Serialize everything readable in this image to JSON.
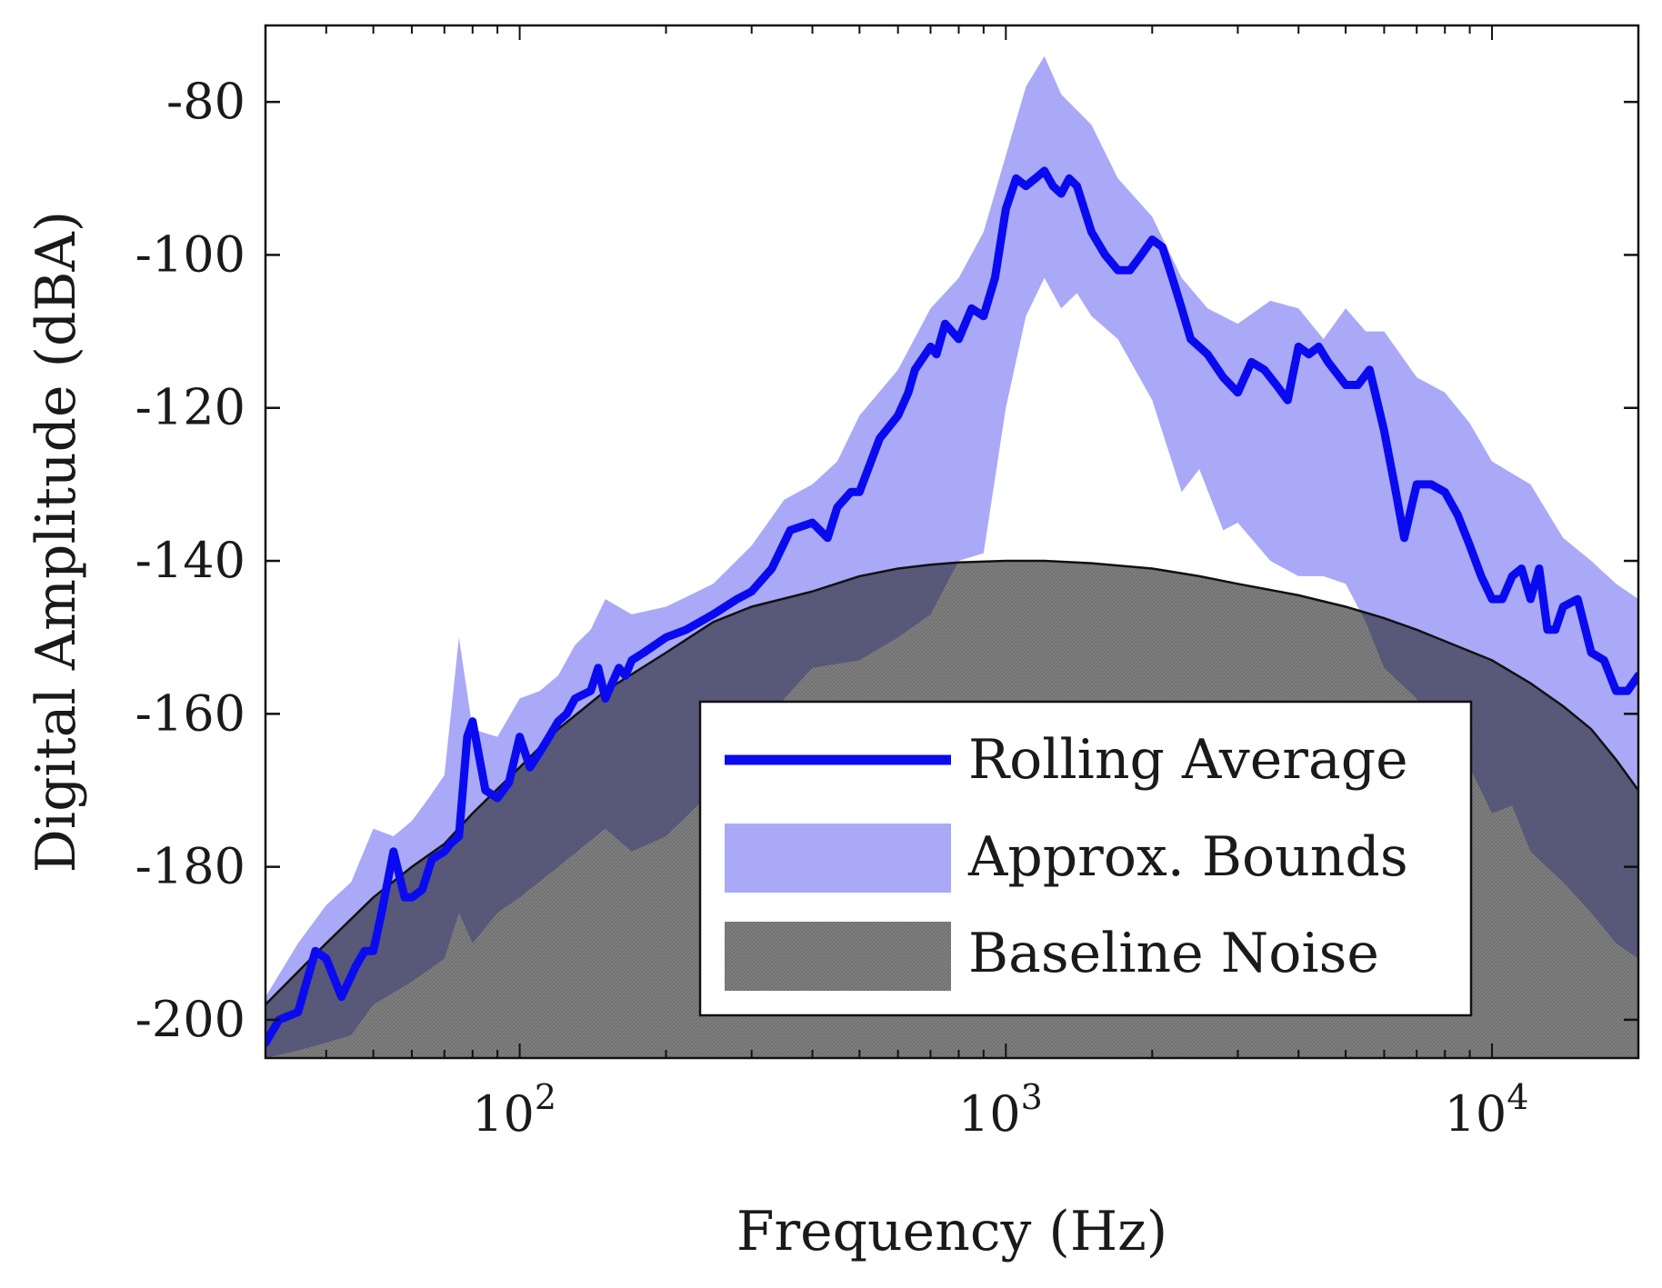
{
  "chart_data": {
    "type": "line",
    "title": "",
    "xlabel": "Frequency (Hz)",
    "ylabel": "Digital Amplitude (dBA)",
    "xscale": "log",
    "xlim": [
      30,
      20000
    ],
    "ylim": [
      -205,
      -70
    ],
    "grid": false,
    "legend_position": "bottom-right",
    "x_ticks": [
      {
        "base": "10",
        "exp": "2",
        "value": 100
      },
      {
        "base": "10",
        "exp": "3",
        "value": 1000
      },
      {
        "base": "10",
        "exp": "4",
        "value": 10000
      }
    ],
    "y_ticks": [
      {
        "label": "-80",
        "value": -80
      },
      {
        "label": "-100",
        "value": -100
      },
      {
        "label": "-120",
        "value": -120
      },
      {
        "label": "-140",
        "value": -140
      },
      {
        "label": "-160",
        "value": -160
      },
      {
        "label": "-180",
        "value": -180
      },
      {
        "label": "-200",
        "value": -200
      }
    ],
    "legend": [
      {
        "key": "rolling",
        "label": "Rolling Average"
      },
      {
        "key": "bounds",
        "label": "Approx. Bounds"
      },
      {
        "key": "noise",
        "label": "Baseline Noise"
      }
    ],
    "colors": {
      "rolling": "#0a0af0",
      "bounds": "#a9a9f7",
      "noise": "#7f7f7f",
      "noise_edge": "#111111",
      "overlap": "#4e4e7a"
    },
    "series": [
      {
        "name": "Rolling Average",
        "key": "rolling",
        "x": [
          30,
          32,
          35,
          38,
          40,
          43,
          46,
          48,
          50,
          52,
          55,
          58,
          60,
          63,
          66,
          70,
          72,
          75,
          78,
          80,
          85,
          90,
          95,
          100,
          105,
          110,
          115,
          120,
          125,
          130,
          140,
          145,
          150,
          160,
          165,
          170,
          180,
          200,
          220,
          250,
          280,
          300,
          330,
          360,
          400,
          430,
          450,
          480,
          500,
          550,
          600,
          630,
          650,
          700,
          720,
          750,
          800,
          850,
          900,
          950,
          1000,
          1050,
          1100,
          1150,
          1200,
          1250,
          1300,
          1350,
          1400,
          1500,
          1600,
          1700,
          1800,
          1900,
          2000,
          2100,
          2200,
          2300,
          2400,
          2600,
          2800,
          3000,
          3200,
          3400,
          3600,
          3800,
          4000,
          4200,
          4400,
          4600,
          5000,
          5300,
          5600,
          6000,
          6300,
          6600,
          7000,
          7500,
          8000,
          8500,
          9000,
          9500,
          10000,
          10500,
          11000,
          11500,
          12000,
          12500,
          13000,
          13500,
          14000,
          15000,
          16000,
          17000,
          18000,
          19000,
          20000
        ],
        "values": [
          -203,
          -200,
          -199,
          -191,
          -192,
          -197,
          -193,
          -191,
          -191,
          -186,
          -178,
          -184,
          -184,
          -183,
          -179,
          -178,
          -177,
          -176,
          -163,
          -161,
          -170,
          -171,
          -169,
          -163,
          -167,
          -165,
          -163,
          -161,
          -160,
          -158,
          -157,
          -154,
          -158,
          -154,
          -155,
          -153,
          -152,
          -150,
          -149,
          -147,
          -145,
          -144,
          -141,
          -136,
          -135,
          -137,
          -133,
          -131,
          -131,
          -124,
          -121,
          -118,
          -115,
          -112,
          -113,
          -109,
          -111,
          -107,
          -108,
          -103,
          -94,
          -90,
          -91,
          -90,
          -89,
          -91,
          -92,
          -90,
          -91,
          -97,
          -100,
          -102,
          -102,
          -100,
          -98,
          -99,
          -103,
          -107,
          -111,
          -113,
          -116,
          -118,
          -114,
          -115,
          -117,
          -119,
          -112,
          -113,
          -112,
          -114,
          -117,
          -117,
          -115,
          -123,
          -130,
          -137,
          -130,
          -130,
          -131,
          -134,
          -138,
          -142,
          -145,
          -145,
          -142,
          -141,
          -145,
          -141,
          -149,
          -149,
          -146,
          -145,
          -152,
          -153,
          -157,
          -157,
          -155
        ]
      },
      {
        "name": "Approx. Bounds (upper)",
        "key": "bounds_upper",
        "x": [
          30,
          35,
          40,
          45,
          50,
          55,
          60,
          65,
          70,
          75,
          80,
          90,
          100,
          110,
          120,
          130,
          140,
          150,
          170,
          200,
          250,
          300,
          350,
          400,
          450,
          500,
          600,
          700,
          800,
          900,
          1000,
          1100,
          1200,
          1300,
          1500,
          1700,
          2000,
          2300,
          2600,
          3000,
          3500,
          4000,
          4500,
          5000,
          5500,
          6000,
          7000,
          8000,
          9000,
          10000,
          12000,
          14000,
          16000,
          18000,
          20000
        ],
        "values": [
          -197,
          -190,
          -185,
          -182,
          -175,
          -176,
          -174,
          -171,
          -168,
          -150,
          -162,
          -163,
          -158,
          -157,
          -155,
          -151,
          -149,
          -145,
          -147,
          -146,
          -143,
          -138,
          -132,
          -130,
          -127,
          -121,
          -115,
          -107,
          -103,
          -97,
          -87,
          -78,
          -74,
          -79,
          -83,
          -90,
          -95,
          -103,
          -107,
          -109,
          -106,
          -107,
          -111,
          -107,
          -110,
          -110,
          -116,
          -118,
          -122,
          -127,
          -130,
          -137,
          -140,
          -143,
          -145
        ]
      },
      {
        "name": "Approx. Bounds (lower)",
        "key": "bounds_lower",
        "x": [
          30,
          35,
          40,
          45,
          50,
          60,
          70,
          75,
          80,
          90,
          100,
          120,
          150,
          170,
          200,
          250,
          300,
          350,
          400,
          500,
          600,
          700,
          800,
          900,
          1000,
          1100,
          1200,
          1300,
          1400,
          1500,
          1700,
          2000,
          2300,
          2500,
          2800,
          3000,
          3500,
          4000,
          4500,
          5000,
          5500,
          6000,
          7000,
          8000,
          9000,
          10000,
          11000,
          12000,
          14000,
          16000,
          18000,
          20000
        ],
        "values": [
          -205,
          -204,
          -203,
          -202,
          -198,
          -195,
          -192,
          -186,
          -190,
          -186,
          -184,
          -180,
          -175,
          -178,
          -176,
          -170,
          -165,
          -158,
          -154,
          -153,
          -150,
          -147,
          -140,
          -139,
          -120,
          -108,
          -103,
          -107,
          -105,
          -108,
          -111,
          -119,
          -131,
          -128,
          -136,
          -135,
          -140,
          -142,
          -142,
          -143,
          -148,
          -154,
          -158,
          -165,
          -167,
          -173,
          -172,
          -178,
          -182,
          -186,
          -190,
          -192
        ]
      },
      {
        "name": "Baseline Noise",
        "key": "noise",
        "x": [
          30,
          40,
          50,
          60,
          70,
          80,
          100,
          120,
          150,
          200,
          250,
          300,
          400,
          500,
          600,
          700,
          800,
          1000,
          1200,
          1500,
          2000,
          2500,
          3000,
          4000,
          5000,
          6000,
          7000,
          8000,
          10000,
          12000,
          14000,
          16000,
          18000,
          20000
        ],
        "values": [
          -198,
          -190,
          -184,
          -180,
          -177,
          -173,
          -167,
          -162,
          -157,
          -152,
          -148,
          -146,
          -144,
          -142,
          -141,
          -140.5,
          -140.2,
          -140,
          -140,
          -140.3,
          -141,
          -142,
          -143,
          -144.5,
          -146,
          -147.5,
          -149,
          -150.5,
          -153,
          -156,
          -159,
          -162,
          -166,
          -170
        ]
      }
    ]
  }
}
